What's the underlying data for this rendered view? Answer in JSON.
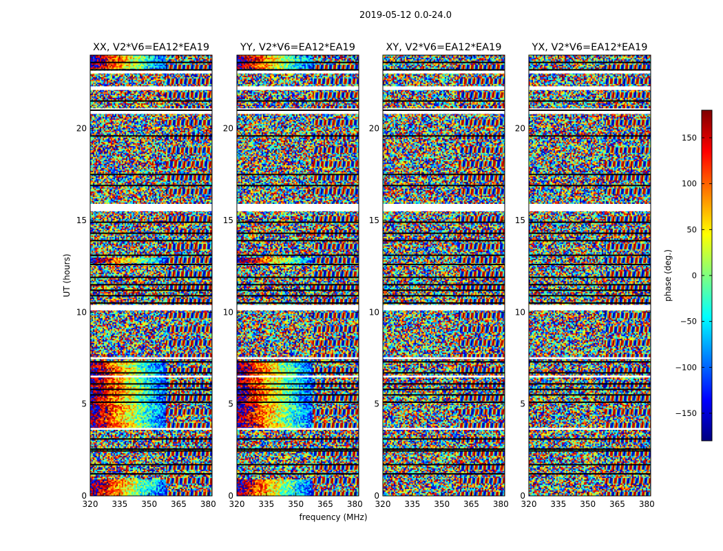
{
  "figure": {
    "suptitle": "2019-05-12 0.0-24.0",
    "xlabel": "frequency (MHz)",
    "ylabel": "UT (hours)"
  },
  "chart_data": {
    "type": "heatmap",
    "title": "2019-05-12 0.0-24.0",
    "xlim": [
      320,
      382
    ],
    "ylim": [
      0,
      24
    ],
    "x_ticks": [
      320,
      335,
      350,
      365,
      380
    ],
    "y_ticks": [
      0,
      5,
      10,
      15,
      20
    ],
    "panels": [
      {
        "title": "XX, V2*V6=EA12*EA19",
        "coherent": true
      },
      {
        "title": "YY, V2*V6=EA12*EA19",
        "coherent": true
      },
      {
        "title": "XY, V2*V6=EA12*EA19",
        "coherent": false
      },
      {
        "title": "YX, V2*V6=EA12*EA19",
        "coherent": false
      }
    ],
    "flagged_bands_ut": [
      [
        23.0,
        23.15
      ],
      [
        22.1,
        22.3
      ],
      [
        20.8,
        21.1
      ],
      [
        15.5,
        15.9
      ],
      [
        10.1,
        10.4
      ],
      [
        7.45,
        7.55
      ],
      [
        6.45,
        6.55
      ],
      [
        3.6,
        3.7
      ]
    ],
    "black_lines_ut": [
      23.6,
      23.2,
      21.5,
      21.0,
      19.6,
      17.5,
      16.9,
      14.9,
      14.3,
      13.9,
      13.1,
      12.6,
      11.9,
      11.5,
      11.2,
      10.9,
      10.5,
      7.3,
      6.7,
      6.1,
      5.8,
      5.5,
      5.1,
      3.1,
      2.55,
      2.45,
      1.7,
      1.2
    ],
    "colorbar": {
      "label": "phase (deg.)",
      "range": [
        -180,
        180
      ],
      "ticks": [
        150,
        100,
        50,
        0,
        -50,
        -100,
        -150
      ],
      "tick_labels": [
        "150",
        "100",
        "50",
        "0",
        "−50",
        "−100",
        "−150"
      ],
      "colors": [
        "#00007f",
        "#0000ff",
        "#007fff",
        "#00ffff",
        "#7fff7f",
        "#ffff00",
        "#ff7f00",
        "#ff0000",
        "#7f0000"
      ]
    }
  }
}
